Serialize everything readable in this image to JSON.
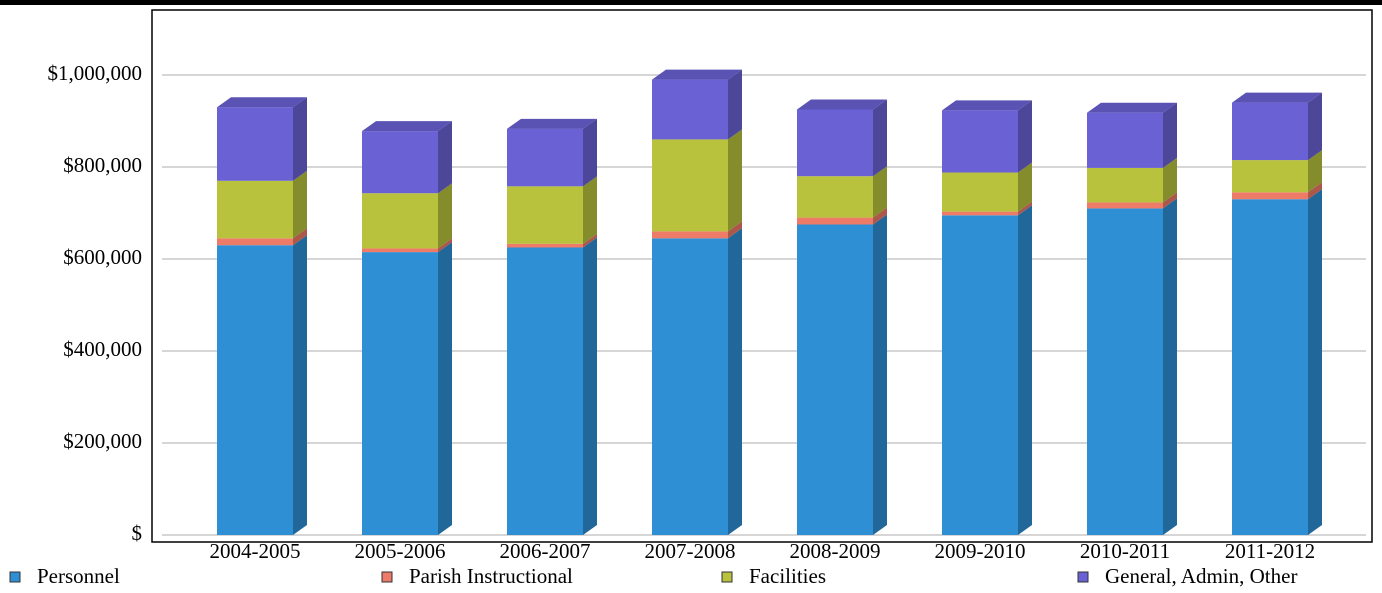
{
  "chart_data": {
    "type": "bar",
    "stacked": true,
    "categories": [
      "2004-2005",
      "2005-2006",
      "2006-2007",
      "2007-2008",
      "2008-2009",
      "2009-2010",
      "2010-2011",
      "2011-2012"
    ],
    "series": [
      {
        "name": "Personnel",
        "color": "#2f8fd4",
        "values": [
          630000,
          615000,
          625000,
          645000,
          675000,
          695000,
          710000,
          730000
        ]
      },
      {
        "name": "Parish Instructional",
        "color": "#ee7a68",
        "values": [
          15000,
          8000,
          8000,
          15000,
          15000,
          8000,
          13000,
          15000
        ]
      },
      {
        "name": "Facilities",
        "color": "#b8c23c",
        "values": [
          125000,
          120000,
          125000,
          200000,
          90000,
          85000,
          75000,
          70000
        ]
      },
      {
        "name": "General, Admin, Other",
        "color": "#6a62d4",
        "values": [
          160000,
          135000,
          125000,
          130000,
          145000,
          135000,
          120000,
          125000
        ]
      }
    ],
    "ylim": [
      0,
      1100000
    ],
    "yticks": [
      {
        "value": 0,
        "label": "$"
      },
      {
        "value": 200000,
        "label": "$200,000"
      },
      {
        "value": 400000,
        "label": "$400,000"
      },
      {
        "value": 600000,
        "label": "$600,000"
      },
      {
        "value": 800000,
        "label": "$800,000"
      },
      {
        "value": 1000000,
        "label": "$1,000,000"
      }
    ],
    "grid": true
  }
}
